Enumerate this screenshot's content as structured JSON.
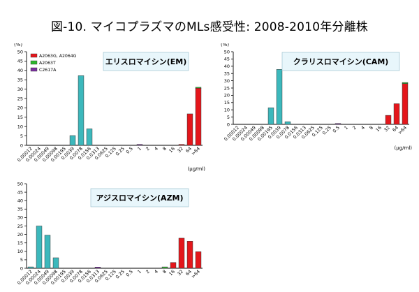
{
  "title": "図-10. マイコプラズマのMLs感受性: 2008-2010年分離株",
  "colors": {
    "wild": "#3cb8bc",
    "a2063t": "#2db52d",
    "c2617a": "#7a2f9e",
    "a2063g": "#e4161b"
  },
  "chart_data": [
    {
      "type": "bar",
      "name": "em",
      "title": "エリスロマイシン(EM)",
      "ylabel": "(%)",
      "xlabel": "(μg/ml)",
      "ylim": [
        0,
        50
      ],
      "yticks": [
        0,
        5,
        10,
        15,
        20,
        25,
        30,
        35,
        40,
        45,
        50
      ],
      "categories": [
        "0.00012",
        "0.00024",
        "0.00049",
        "0.00098",
        "0.00195",
        "0.0039",
        "0.0078",
        "0.0156",
        "0.0313",
        "0.0625",
        "0.125",
        "0.25",
        "0.5",
        "1",
        "2",
        "4",
        "8",
        "16",
        "32",
        "64",
        ">64"
      ],
      "legend": {
        "position": "top-left",
        "items": [
          {
            "label": "A2063G, A2064G",
            "color": "#e4161b"
          },
          {
            "label": "A2063T",
            "color": "#2db52d"
          },
          {
            "label": "C2617A",
            "color": "#7a2f9e"
          }
        ]
      },
      "bars": [
        {
          "category": "0.0039",
          "value": 5.2,
          "color": "#3cb8bc"
        },
        {
          "category": "0.0078",
          "value": 37.2,
          "color": "#3cb8bc"
        },
        {
          "category": "0.0156",
          "value": 8.8,
          "color": "#3cb8bc"
        },
        {
          "category": "1",
          "value": 0.5,
          "color": "#7a2f9e"
        },
        {
          "category": "32",
          "value": 0.5,
          "color": "#e4161b"
        },
        {
          "category": "64",
          "value": 16.8,
          "color": "#e4161b"
        },
        {
          "category": ">64",
          "value": 30.5,
          "color": "#e4161b",
          "cap": 0.5,
          "cap_color": "#2db52d"
        }
      ]
    },
    {
      "type": "bar",
      "name": "cam",
      "title": "クラリスロマイシン(CAM)",
      "ylabel": "(%)",
      "xlabel": "(μg/ml)",
      "ylim": [
        0,
        50
      ],
      "yticks": [
        0,
        5,
        10,
        15,
        20,
        25,
        30,
        35,
        40,
        45,
        50
      ],
      "categories": [
        "0.00012",
        "0.00024",
        "0.00049",
        "0.00098",
        "0.00195",
        "0.0039",
        "0.0078",
        "0.0156",
        "0.0313",
        "0.0625",
        "0.125",
        "0.25",
        "0.5",
        "1",
        "2",
        "4",
        "8",
        "16",
        "32",
        "64",
        ">64"
      ],
      "bars": [
        {
          "category": "0.00195",
          "value": 11.4,
          "color": "#3cb8bc"
        },
        {
          "category": "0.0039",
          "value": 37.8,
          "color": "#3cb8bc"
        },
        {
          "category": "0.0078",
          "value": 1.8,
          "color": "#3cb8bc"
        },
        {
          "category": "0.5",
          "value": 0.6,
          "color": "#7a2f9e"
        },
        {
          "category": "32",
          "value": 6.2,
          "color": "#e4161b"
        },
        {
          "category": "64",
          "value": 14.2,
          "color": "#e4161b"
        },
        {
          "category": ">64",
          "value": 28.0,
          "color": "#e4161b",
          "cap": 0.8,
          "cap_color": "#2db52d"
        }
      ]
    },
    {
      "type": "bar",
      "name": "azm",
      "title": "アジスロマイシン(AZM)",
      "ylabel": "",
      "xlabel": "",
      "ylim": [
        0,
        50
      ],
      "yticks": [
        0,
        5,
        10,
        15,
        20,
        25,
        30,
        35,
        40,
        45,
        50
      ],
      "categories": [
        "0.00012",
        "0.00024",
        "0.00049",
        "0.00098",
        "0.00195",
        "0.0039",
        "0.0078",
        "0.0156",
        "0.0313",
        "0.0625",
        "0.125",
        "0.25",
        "0.5",
        "1",
        "2",
        "4",
        "8",
        "16",
        "32",
        "64",
        ">64"
      ],
      "bars": [
        {
          "category": "0.00012",
          "value": 0.8,
          "color": "#3cb8bc"
        },
        {
          "category": "0.00024",
          "value": 25.0,
          "color": "#3cb8bc"
        },
        {
          "category": "0.00049",
          "value": 19.6,
          "color": "#3cb8bc"
        },
        {
          "category": "0.00098",
          "value": 6.2,
          "color": "#3cb8bc"
        },
        {
          "category": "0.0313",
          "value": 0.7,
          "color": "#7a2f9e"
        },
        {
          "category": "8",
          "value": 0.8,
          "color": "#2db52d"
        },
        {
          "category": "16",
          "value": 3.4,
          "color": "#e4161b"
        },
        {
          "category": "32",
          "value": 17.8,
          "color": "#e4161b"
        },
        {
          "category": "64",
          "value": 16.0,
          "color": "#e4161b"
        },
        {
          "category": ">64",
          "value": 9.8,
          "color": "#e4161b"
        }
      ]
    }
  ]
}
